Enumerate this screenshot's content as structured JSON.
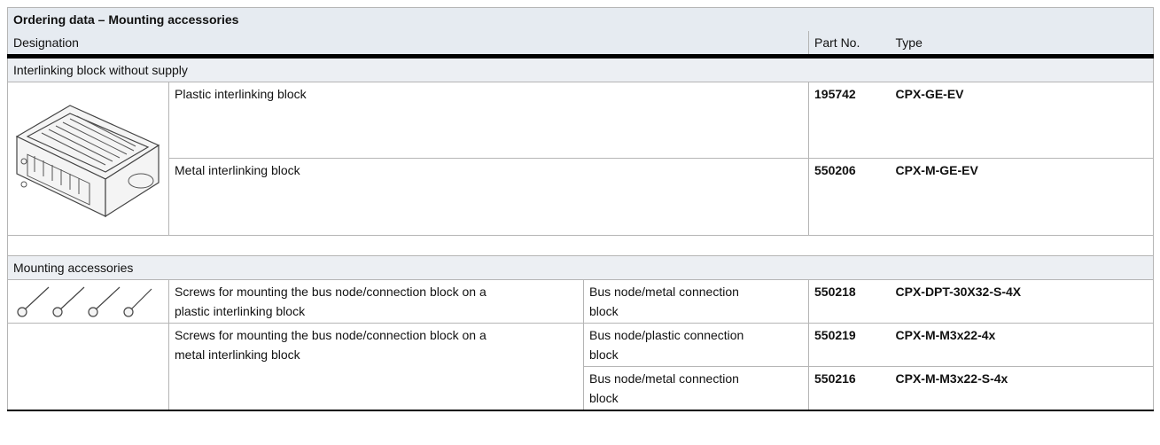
{
  "header": {
    "title": "Ordering data – Mounting accessories",
    "columns": [
      "Designation",
      "Part No.",
      "Type"
    ]
  },
  "sections": [
    {
      "title": "Interlinking block without supply",
      "rows": [
        {
          "designation": "Plastic interlinking block",
          "part_no": "195742",
          "type": "CPX-GE-EV"
        },
        {
          "designation": "Metal interlinking block",
          "part_no": "550206",
          "type": "CPX-M-GE-EV"
        }
      ]
    },
    {
      "title": "Mounting accessories",
      "rows": [
        {
          "designation": "Screws for mounting the bus node/connection block on a plastic interlinking block",
          "for": "Bus node/metal connection block",
          "part_no": "550218",
          "type": "CPX-DPT-30X32-S-4X"
        },
        {
          "designation": "Screws for mounting the bus node/connection block on a metal interlinking block",
          "for": "Bus node/plastic connection block",
          "part_no": "550219",
          "type": "CPX-M-M3x22-4x"
        },
        {
          "for": "Bus node/metal connection block",
          "part_no": "550216",
          "type": "CPX-M-M3x22-S-4x"
        }
      ]
    }
  ]
}
